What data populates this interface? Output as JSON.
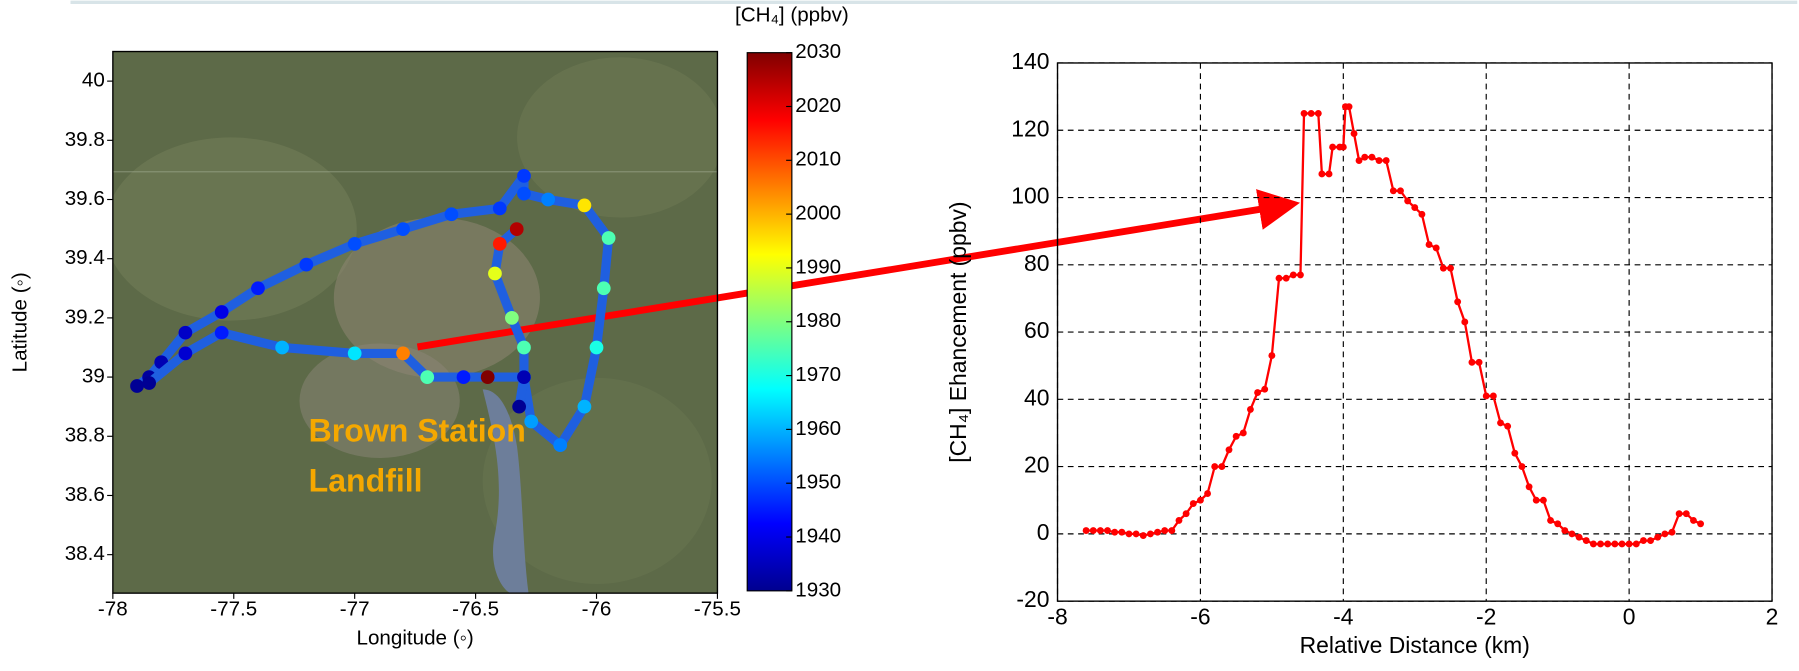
{
  "chart_data": [
    {
      "type": "map-scatter",
      "xlabel": "Longitude (◦)",
      "ylabel": "Latitude (◦)",
      "xlim": [
        -78,
        -75.5
      ],
      "ylim": [
        38.27,
        40.1
      ],
      "xticks": [
        -78,
        -77.5,
        -77,
        -76.5,
        -76,
        -75.5
      ],
      "yticks": [
        38.4,
        38.6,
        38.8,
        39,
        39.2,
        39.4,
        39.6,
        39.8,
        40
      ],
      "colorbar": {
        "label": "[CH₄]  (ppbv)",
        "lim": [
          1930,
          2030
        ],
        "ticks": [
          1930,
          1940,
          1950,
          1960,
          1970,
          1980,
          1990,
          2000,
          2010,
          2020,
          2030
        ],
        "colormap": "jet"
      },
      "annotations": [
        "Brown Station",
        "Landfill"
      ],
      "series": [
        {
          "x": [
            -77.9,
            -77.85,
            -77.8,
            -77.7,
            -77.55,
            -77.4,
            -77.2,
            -77.0,
            -76.8,
            -76.6,
            -76.4,
            -76.3,
            -76.3,
            -76.2,
            -76.05,
            -75.95,
            -75.97,
            -76.0,
            -76.05,
            -76.15,
            -76.27,
            -76.3,
            -76.3,
            -76.35,
            -76.42,
            -76.4,
            -76.33
          ],
          "y": [
            38.97,
            39.0,
            39.05,
            39.15,
            39.22,
            39.3,
            39.38,
            39.45,
            39.5,
            39.55,
            39.57,
            39.68,
            39.62,
            39.6,
            39.58,
            39.47,
            39.3,
            39.1,
            38.9,
            38.77,
            38.85,
            39.0,
            39.1,
            39.2,
            39.35,
            39.45,
            39.5
          ],
          "values": [
            1932,
            1933,
            1935,
            1937,
            1940,
            1945,
            1948,
            1950,
            1950,
            1950,
            1948,
            1948,
            1950,
            1955,
            1995,
            1975,
            1975,
            1970,
            1960,
            1955,
            1958,
            1965,
            1975,
            1980,
            1990,
            2015,
            2025
          ]
        },
        {
          "x": [
            -77.85,
            -77.7,
            -77.55,
            -77.3,
            -77.0,
            -76.8,
            -76.7,
            -76.55,
            -76.45,
            -76.3,
            -76.32
          ],
          "y": [
            38.98,
            39.08,
            39.15,
            39.1,
            39.08,
            39.08,
            39.0,
            39.0,
            39.0,
            39.0,
            38.9
          ],
          "values": [
            1932,
            1938,
            1945,
            1960,
            1965,
            2005,
            1975,
            1945,
            2030,
            1935,
            1932
          ]
        }
      ]
    },
    {
      "type": "line",
      "xlabel": "Relative Distance (km)",
      "ylabel": "[CH₄] Ehancement (ppbv)",
      "xlim": [
        -8,
        2
      ],
      "ylim": [
        -20,
        140
      ],
      "xticks": [
        -8,
        -6,
        -4,
        -2,
        0,
        2
      ],
      "yticks": [
        -20,
        0,
        20,
        40,
        60,
        80,
        100,
        120,
        140
      ],
      "grid": true,
      "series": [
        {
          "color": "#ff0000",
          "x": [
            -7.6,
            -7.5,
            -7.4,
            -7.3,
            -7.2,
            -7.1,
            -7.0,
            -6.9,
            -6.8,
            -6.7,
            -6.6,
            -6.5,
            -6.4,
            -6.3,
            -6.2,
            -6.1,
            -6.0,
            -5.9,
            -5.8,
            -5.7,
            -5.6,
            -5.5,
            -5.4,
            -5.3,
            -5.2,
            -5.1,
            -5.0,
            -4.9,
            -4.8,
            -4.7,
            -4.6,
            -4.55,
            -4.45,
            -4.35,
            -4.3,
            -4.2,
            -4.15,
            -4.05,
            -4.0,
            -3.97,
            -3.92,
            -3.85,
            -3.78,
            -3.7,
            -3.6,
            -3.5,
            -3.4,
            -3.3,
            -3.2,
            -3.1,
            -3.0,
            -2.9,
            -2.8,
            -2.7,
            -2.6,
            -2.5,
            -2.4,
            -2.3,
            -2.2,
            -2.1,
            -2.0,
            -1.9,
            -1.8,
            -1.7,
            -1.6,
            -1.5,
            -1.4,
            -1.3,
            -1.2,
            -1.1,
            -1.0,
            -0.9,
            -0.8,
            -0.7,
            -0.6,
            -0.5,
            -0.4,
            -0.3,
            -0.2,
            -0.1,
            0,
            0.1,
            0.2,
            0.3,
            0.4,
            0.5,
            0.6,
            0.7,
            0.8,
            0.9,
            1.0
          ],
          "values": [
            1,
            1,
            1,
            1,
            0.5,
            0.5,
            0,
            0,
            -0.5,
            0,
            0.5,
            1,
            1,
            4,
            6,
            9,
            10,
            12,
            20,
            20,
            25,
            29,
            30,
            37,
            42,
            43,
            53,
            76,
            76,
            77,
            77,
            125,
            125,
            125,
            107,
            107,
            115,
            115,
            115,
            127,
            127,
            119,
            111,
            112,
            112,
            111,
            111,
            102,
            102,
            99,
            97,
            95,
            86,
            85,
            79,
            79,
            69,
            63,
            51,
            51,
            41,
            41,
            33,
            32,
            24,
            20,
            14,
            10,
            10,
            4,
            3,
            1,
            0,
            -1,
            -2,
            -3,
            -3,
            -3,
            -3,
            -3,
            -3,
            -3,
            -2,
            -2,
            -1,
            0,
            0.5,
            6,
            6,
            4,
            3
          ]
        }
      ]
    }
  ]
}
